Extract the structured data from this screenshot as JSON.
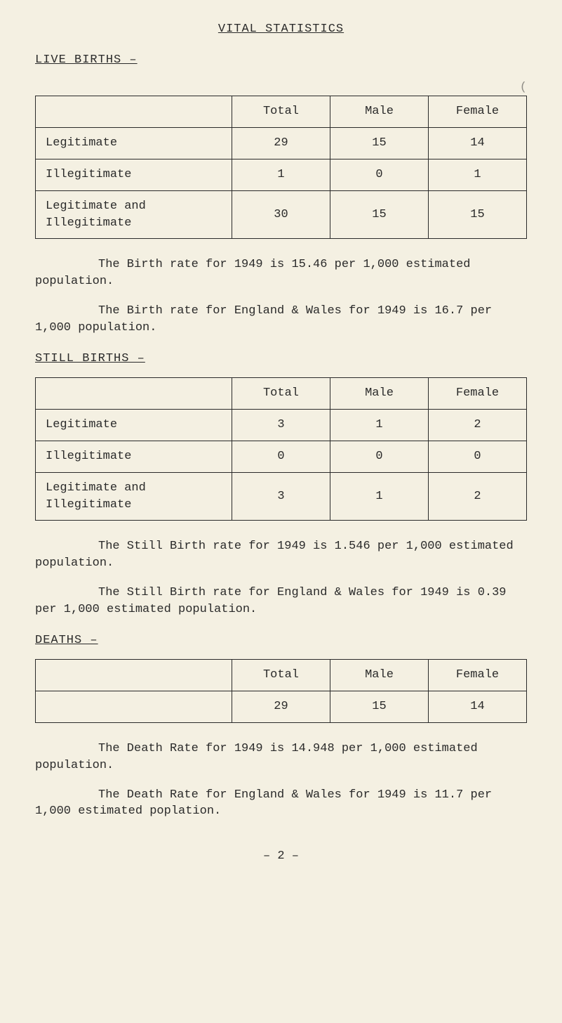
{
  "page_title": "VITAL STATISTICS",
  "sections": {
    "live_births": {
      "heading": "LIVE BIRTHS –",
      "corner_mark": "(",
      "table": {
        "headers": [
          "",
          "Total",
          "Male",
          "Female"
        ],
        "rows": [
          [
            "Legitimate",
            "29",
            "15",
            "14"
          ],
          [
            "Illegitimate",
            "1",
            "0",
            "1"
          ],
          [
            "Legitimate and Illegitimate",
            "30",
            "15",
            "15"
          ]
        ]
      },
      "para1": "The Birth rate for 1949 is 15.46 per 1,000 estimated population.",
      "para2": "The Birth rate for England & Wales for 1949 is 16.7 per 1,000 population."
    },
    "still_births": {
      "heading": "STILL BIRTHS –",
      "table": {
        "headers": [
          "",
          "Total",
          "Male",
          "Female"
        ],
        "rows": [
          [
            "Legitimate",
            "3",
            "1",
            "2"
          ],
          [
            "Illegitimate",
            "0",
            "0",
            "0"
          ],
          [
            "Legitimate and Illegitimate",
            "3",
            "1",
            "2"
          ]
        ]
      },
      "para1": "The Still Birth rate for 1949 is 1.546 per 1,000 estimated population.",
      "para2": "The Still Birth rate for England & Wales for 1949 is 0.39 per 1,000 estimated population."
    },
    "deaths": {
      "heading": "DEATHS –",
      "table": {
        "headers": [
          "",
          "Total",
          "Male",
          "Female"
        ],
        "rows": [
          [
            "",
            "29",
            "15",
            "14"
          ]
        ]
      },
      "para1": "The Death Rate for 1949 is 14.948 per 1,000 estimated population.",
      "para2": "The Death Rate for England & Wales for 1949 is 11.7 per 1,000 estimated poplation."
    }
  },
  "page_number": "– 2 –"
}
